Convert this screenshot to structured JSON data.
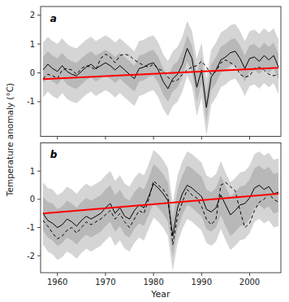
{
  "chart_data": [
    {
      "type": "line",
      "x": [
        1957,
        1958,
        1959,
        1960,
        1961,
        1962,
        1963,
        1964,
        1965,
        1966,
        1967,
        1968,
        1969,
        1970,
        1971,
        1972,
        1973,
        1974,
        1975,
        1976,
        1977,
        1978,
        1979,
        1980,
        1981,
        1982,
        1983,
        1984,
        1985,
        1986,
        1987,
        1988,
        1989,
        1990,
        1991,
        1992,
        1993,
        1994,
        1995,
        1996,
        1997,
        1998,
        1999,
        2000,
        2001,
        2002,
        2003,
        2004,
        2005,
        2006
      ],
      "xlim": [
        1956.5,
        2006.5
      ],
      "xticks": [
        1960,
        1970,
        1980,
        1990,
        2000
      ],
      "ylim": [
        -2.2,
        2.3
      ],
      "yticks": [
        -1,
        0,
        1,
        2
      ],
      "tick_labels": "y",
      "ylabel": "Temperature anomaly (°C)",
      "annotations": [
        "a"
      ],
      "series": [
        {
          "type": "band",
          "color": "#d5d5d5",
          "lower": [
            -0.85,
            -0.65,
            -0.8,
            -0.9,
            -0.7,
            -0.9,
            -1.0,
            -1.05,
            -0.9,
            -0.75,
            -0.65,
            -0.8,
            -0.7,
            -0.6,
            -0.7,
            -0.85,
            -0.7,
            -0.85,
            -1.0,
            -1.15,
            -0.8,
            -0.75,
            -0.65,
            -0.6,
            -0.85,
            -1.25,
            -1.5,
            -1.15,
            -1.0,
            -0.65,
            -0.1,
            -0.45,
            -1.5,
            -0.85,
            -2.2,
            -1.1,
            -0.85,
            -0.5,
            -0.4,
            -0.25,
            -0.2,
            -0.45,
            -0.8,
            -0.45,
            -0.4,
            -0.55,
            -0.35,
            -0.5,
            -0.35,
            -0.75
          ],
          "upper": [
            1.05,
            1.25,
            1.1,
            1.0,
            1.2,
            1.0,
            0.9,
            0.85,
            1.0,
            1.15,
            1.25,
            1.1,
            1.2,
            1.3,
            1.2,
            1.05,
            1.2,
            1.05,
            0.9,
            0.75,
            1.1,
            1.15,
            1.25,
            1.3,
            1.05,
            0.65,
            0.4,
            0.75,
            0.9,
            1.25,
            1.8,
            1.45,
            0.5,
            1.05,
            -0.2,
            0.8,
            1.05,
            1.4,
            1.5,
            1.65,
            1.7,
            1.45,
            1.1,
            1.45,
            1.5,
            1.35,
            1.55,
            1.4,
            1.55,
            1.15
          ]
        },
        {
          "type": "band",
          "color": "#b8b8b8",
          "lower": [
            -0.35,
            -0.15,
            -0.3,
            -0.4,
            -0.2,
            -0.4,
            -0.5,
            -0.55,
            -0.4,
            -0.25,
            -0.15,
            -0.3,
            -0.2,
            -0.1,
            -0.2,
            -0.35,
            -0.2,
            -0.35,
            -0.5,
            -0.65,
            -0.3,
            -0.25,
            -0.15,
            -0.1,
            -0.35,
            -0.75,
            -1.0,
            -0.65,
            -0.5,
            -0.15,
            0.4,
            0.05,
            -1.0,
            -0.35,
            -1.7,
            -0.6,
            -0.35,
            0.0,
            0.1,
            0.25,
            0.3,
            0.05,
            -0.3,
            0.05,
            0.1,
            -0.05,
            0.15,
            0.0,
            0.15,
            -0.25
          ],
          "upper": [
            0.55,
            0.75,
            0.6,
            0.5,
            0.7,
            0.5,
            0.4,
            0.35,
            0.5,
            0.65,
            0.75,
            0.6,
            0.7,
            0.8,
            0.7,
            0.55,
            0.7,
            0.55,
            0.4,
            0.25,
            0.6,
            0.65,
            0.75,
            0.8,
            0.55,
            0.15,
            -0.1,
            0.25,
            0.4,
            0.75,
            1.3,
            0.95,
            0.0,
            0.55,
            -0.7,
            0.3,
            0.55,
            0.9,
            1.0,
            1.15,
            1.2,
            0.95,
            0.6,
            0.95,
            1.0,
            0.85,
            1.05,
            0.9,
            1.05,
            0.65
          ]
        },
        {
          "type": "line",
          "color": "#000000",
          "line_style": "dashed",
          "values": [
            -0.2,
            -0.05,
            -0.1,
            -0.2,
            0.1,
            0.15,
            0.1,
            -0.05,
            0.15,
            0.25,
            0.2,
            0.1,
            0.5,
            0.65,
            0.55,
            0.35,
            0.6,
            0.65,
            0.6,
            0.45,
            0.35,
            0.25,
            0.2,
            0.3,
            0.15,
            0.05,
            -0.15,
            -0.3,
            -0.25,
            -0.05,
            0.1,
            0.2,
            0.25,
            0.4,
            0.2,
            -0.05,
            0.05,
            0.35,
            0.45,
            0.35,
            0.25,
            -0.05,
            -0.15,
            -0.1,
            0.15,
            0.2,
            0.1,
            -0.05,
            -0.1,
            -0.05
          ]
        },
        {
          "type": "line",
          "color": "#000000",
          "line_style": "solid",
          "values": [
            0.1,
            0.3,
            0.15,
            0.05,
            0.25,
            0.05,
            -0.05,
            -0.1,
            0.05,
            0.2,
            0.3,
            0.15,
            0.25,
            0.35,
            0.25,
            0.1,
            0.25,
            0.1,
            -0.05,
            -0.2,
            0.15,
            0.2,
            0.3,
            0.35,
            0.1,
            -0.3,
            -0.55,
            -0.2,
            -0.05,
            0.3,
            0.85,
            0.5,
            -0.5,
            0.1,
            -1.2,
            -0.15,
            0.1,
            0.45,
            0.55,
            0.7,
            0.75,
            0.5,
            0.15,
            0.5,
            0.55,
            0.4,
            0.6,
            0.45,
            0.6,
            0.2
          ]
        },
        {
          "type": "line",
          "color": "#ff0000",
          "line_style": "solid",
          "x": [
            1957,
            2006
          ],
          "values": [
            -0.22,
            0.18
          ]
        }
      ]
    },
    {
      "type": "line",
      "x": [
        1957,
        1958,
        1959,
        1960,
        1961,
        1962,
        1963,
        1964,
        1965,
        1966,
        1967,
        1968,
        1969,
        1970,
        1971,
        1972,
        1973,
        1974,
        1975,
        1976,
        1977,
        1978,
        1979,
        1980,
        1981,
        1982,
        1983,
        1984,
        1985,
        1986,
        1987,
        1988,
        1989,
        1990,
        1991,
        1992,
        1993,
        1994,
        1995,
        1996,
        1997,
        1998,
        1999,
        2000,
        2001,
        2002,
        2003,
        2004,
        2005,
        2006
      ],
      "xlim": [
        1956.5,
        2006.5
      ],
      "xticks": [
        1960,
        1970,
        1980,
        1990,
        2000
      ],
      "ylim": [
        -2.6,
        2.0
      ],
      "yticks": [
        -2,
        -1,
        0,
        1
      ],
      "xlabel": "Year",
      "annotations": [
        "b"
      ],
      "series": [
        {
          "type": "band",
          "color": "#d5d5d5",
          "lower": [
            -1.6,
            -1.85,
            -1.95,
            -2.15,
            -2.05,
            -1.85,
            -1.95,
            -2.1,
            -1.9,
            -1.75,
            -1.85,
            -1.75,
            -1.65,
            -1.45,
            -1.3,
            -1.65,
            -1.45,
            -1.75,
            -1.85,
            -1.55,
            -1.35,
            -1.45,
            -1.05,
            -0.65,
            -0.8,
            -1.0,
            -1.3,
            -2.55,
            -1.55,
            -1.05,
            -0.7,
            -0.8,
            -0.95,
            -1.1,
            -1.55,
            -1.65,
            -1.5,
            -1.05,
            -1.45,
            -1.8,
            -1.65,
            -1.45,
            -1.4,
            -1.2,
            -0.8,
            -0.7,
            -0.85,
            -0.75,
            -1.0,
            -0.95
          ],
          "upper": [
            0.6,
            0.4,
            0.35,
            0.15,
            0.25,
            0.45,
            0.35,
            0.2,
            0.4,
            0.55,
            0.45,
            0.55,
            0.65,
            0.85,
            1.0,
            0.65,
            0.85,
            0.55,
            0.45,
            0.75,
            0.95,
            0.85,
            1.25,
            1.75,
            1.6,
            1.4,
            1.1,
            -0.15,
            0.85,
            1.35,
            1.7,
            1.6,
            1.45,
            1.3,
            0.85,
            0.75,
            0.9,
            1.35,
            0.95,
            0.6,
            0.75,
            0.95,
            1.0,
            1.2,
            1.6,
            1.7,
            1.55,
            1.65,
            1.4,
            1.45
          ]
        },
        {
          "type": "band",
          "color": "#b8b8b8",
          "lower": [
            -1.1,
            -1.35,
            -1.45,
            -1.65,
            -1.55,
            -1.35,
            -1.45,
            -1.6,
            -1.4,
            -1.25,
            -1.35,
            -1.25,
            -1.15,
            -0.95,
            -0.8,
            -1.15,
            -0.95,
            -1.25,
            -1.35,
            -1.05,
            -0.85,
            -0.95,
            -0.55,
            -0.15,
            -0.3,
            -0.5,
            -0.8,
            -2.05,
            -1.05,
            -0.55,
            -0.2,
            -0.3,
            -0.45,
            -0.6,
            -1.05,
            -1.15,
            -1.0,
            -0.55,
            -0.95,
            -1.3,
            -1.15,
            -0.95,
            -0.9,
            -0.7,
            -0.3,
            -0.2,
            -0.35,
            -0.25,
            -0.5,
            -0.45
          ],
          "upper": [
            0.1,
            -0.1,
            -0.15,
            -0.35,
            -0.25,
            -0.05,
            -0.15,
            -0.3,
            -0.1,
            0.05,
            -0.05,
            0.05,
            0.15,
            0.35,
            0.5,
            0.15,
            0.35,
            0.05,
            -0.05,
            0.25,
            0.45,
            0.35,
            0.75,
            1.25,
            1.1,
            0.9,
            0.6,
            -0.65,
            0.35,
            0.85,
            1.2,
            1.1,
            0.95,
            0.8,
            0.35,
            0.25,
            0.4,
            0.85,
            0.45,
            0.1,
            0.25,
            0.45,
            0.5,
            0.7,
            1.1,
            1.2,
            1.05,
            1.15,
            0.9,
            0.95
          ]
        },
        {
          "type": "line",
          "color": "#000000",
          "line_style": "dashed",
          "values": [
            -0.75,
            -0.95,
            -1.2,
            -1.4,
            -1.3,
            -1.1,
            -1.0,
            -1.2,
            -1.0,
            -0.8,
            -0.9,
            -0.8,
            -0.7,
            -0.55,
            -0.4,
            -0.7,
            -0.5,
            -0.8,
            -1.0,
            -0.7,
            -0.4,
            -0.5,
            0.0,
            0.65,
            0.5,
            0.35,
            0.1,
            -1.6,
            -0.6,
            -0.1,
            0.35,
            0.15,
            0.05,
            -0.25,
            -0.7,
            -0.9,
            -0.7,
            0.5,
            0.6,
            0.45,
            0.3,
            -0.4,
            -1.0,
            -0.85,
            -0.4,
            -0.1,
            0.0,
            0.2,
            0.0,
            -0.1
          ]
        },
        {
          "type": "line",
          "color": "#000000",
          "line_style": "solid",
          "values": [
            -0.5,
            -0.75,
            -0.85,
            -1.0,
            -0.9,
            -0.7,
            -0.8,
            -0.95,
            -0.75,
            -0.6,
            -0.7,
            -0.6,
            -0.5,
            -0.3,
            -0.15,
            -0.5,
            -0.3,
            -0.6,
            -0.7,
            -0.4,
            -0.2,
            -0.3,
            0.1,
            0.55,
            0.4,
            0.2,
            -0.05,
            -1.3,
            -0.3,
            0.2,
            0.5,
            0.4,
            0.25,
            0.1,
            -0.35,
            -0.45,
            -0.3,
            0.15,
            -0.2,
            -0.55,
            -0.4,
            -0.2,
            -0.15,
            0.05,
            0.4,
            0.5,
            0.35,
            0.45,
            0.2,
            0.25
          ]
        },
        {
          "type": "line",
          "color": "#ff0000",
          "line_style": "solid",
          "x": [
            1957,
            2006
          ],
          "values": [
            -0.5,
            0.2
          ]
        }
      ]
    }
  ]
}
